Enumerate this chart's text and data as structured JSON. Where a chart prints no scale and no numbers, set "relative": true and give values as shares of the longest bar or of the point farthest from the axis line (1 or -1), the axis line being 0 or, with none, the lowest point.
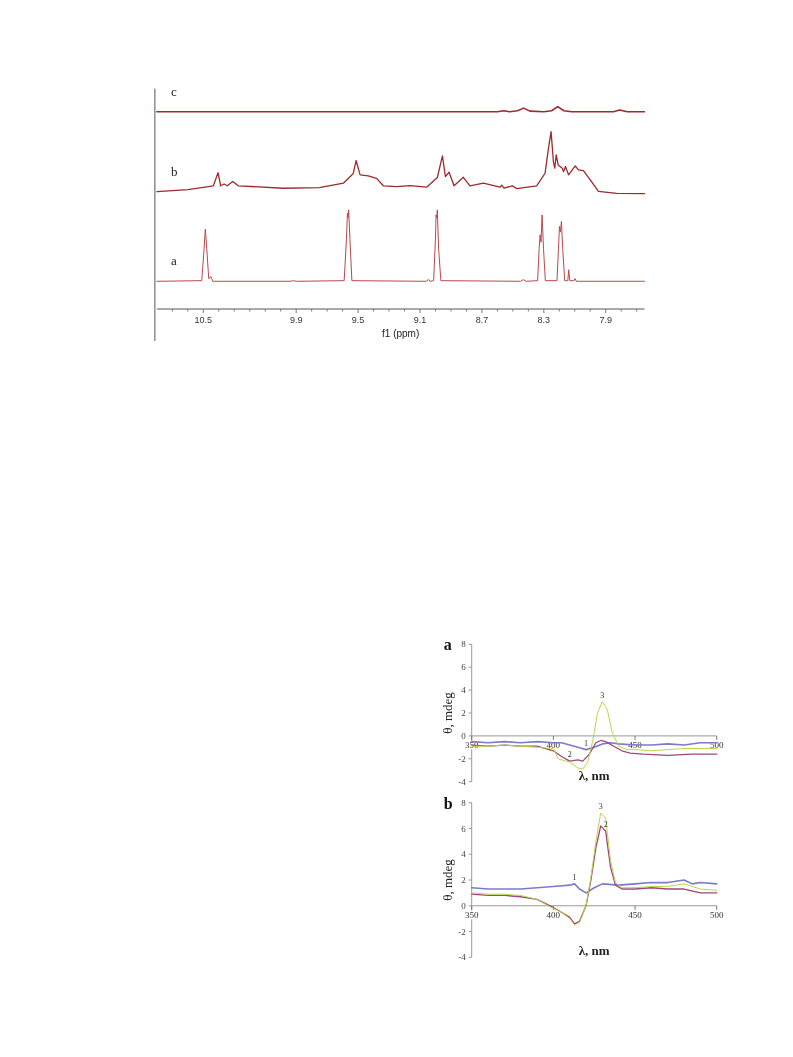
{
  "chart_data": [
    {
      "type": "line",
      "relative": true,
      "xlabel": "f1 (ppm)",
      "xlim": [
        10.8,
        7.65
      ],
      "xticks": [
        {
          "value": 10.7,
          "label": null
        },
        {
          "value": 10.6,
          "label": null
        },
        {
          "value": 10.5,
          "label": "10.5"
        },
        {
          "value": 10.4,
          "label": null
        },
        {
          "value": 10.3,
          "label": null
        },
        {
          "value": 10.2,
          "label": null
        },
        {
          "value": 10.1,
          "label": null
        },
        {
          "value": 10.0,
          "label": null
        },
        {
          "value": 9.9,
          "label": "9.9"
        },
        {
          "value": 9.8,
          "label": null
        },
        {
          "value": 9.7,
          "label": null
        },
        {
          "value": 9.6,
          "label": null
        },
        {
          "value": 9.5,
          "label": "9.5"
        },
        {
          "value": 9.4,
          "label": null
        },
        {
          "value": 9.3,
          "label": null
        },
        {
          "value": 9.2,
          "label": null
        },
        {
          "value": 9.1,
          "label": "9.1"
        },
        {
          "value": 9.0,
          "label": null
        },
        {
          "value": 8.9,
          "label": null
        },
        {
          "value": 8.8,
          "label": null
        },
        {
          "value": 8.7,
          "label": "8.7"
        },
        {
          "value": 8.6,
          "label": null
        },
        {
          "value": 8.5,
          "label": null
        },
        {
          "value": 8.4,
          "label": null
        },
        {
          "value": 8.3,
          "label": "8.3"
        },
        {
          "value": 8.2,
          "label": null
        },
        {
          "value": 8.1,
          "label": null
        },
        {
          "value": 8.0,
          "label": null
        },
        {
          "value": 7.9,
          "label": "7.9"
        },
        {
          "value": 7.8,
          "label": null
        },
        {
          "value": 7.7,
          "label": null
        }
      ],
      "series": [
        {
          "name": "c",
          "color": "#9e2a2b",
          "x": [
            10.8,
            10.2,
            9.6,
            9.0,
            8.6,
            8.56,
            8.52,
            8.47,
            8.43,
            8.39,
            8.3,
            8.25,
            8.21,
            8.17,
            8.12,
            8.0,
            7.85,
            7.81,
            7.76,
            7.65
          ],
          "values": [
            0.975,
            0.975,
            0.975,
            0.975,
            0.975,
            0.98,
            0.975,
            0.98,
            0.993,
            0.978,
            0.975,
            0.98,
            1.0,
            0.98,
            0.975,
            0.975,
            0.975,
            0.984,
            0.975,
            0.975
          ]
        },
        {
          "name": "b",
          "color": "#9e2a2b",
          "x": [
            10.8,
            10.6,
            10.435,
            10.405,
            10.388,
            10.366,
            10.345,
            10.31,
            10.274,
            9.983,
            9.75,
            9.595,
            9.531,
            9.513,
            9.487,
            9.434,
            9.38,
            9.337,
            9.25,
            9.164,
            9.057,
            8.988,
            8.955,
            8.936,
            8.912,
            8.88,
            8.82,
            8.777,
            8.69,
            8.583,
            8.572,
            8.557,
            8.503,
            8.475,
            8.346,
            8.292,
            8.27,
            8.253,
            8.238,
            8.229,
            8.22,
            8.207,
            8.181,
            8.173,
            8.16,
            8.14,
            8.097,
            8.076,
            8.044,
            8.0,
            7.947,
            7.829,
            7.65
          ],
          "values": [
            0.58,
            0.59,
            0.609,
            0.674,
            0.609,
            0.618,
            0.609,
            0.63,
            0.609,
            0.597,
            0.6,
            0.622,
            0.67,
            0.734,
            0.663,
            0.658,
            0.646,
            0.609,
            0.605,
            0.61,
            0.602,
            0.65,
            0.757,
            0.655,
            0.676,
            0.609,
            0.651,
            0.609,
            0.622,
            0.602,
            0.612,
            0.597,
            0.609,
            0.595,
            0.609,
            0.671,
            0.794,
            0.877,
            0.729,
            0.696,
            0.762,
            0.712,
            0.696,
            0.679,
            0.704,
            0.663,
            0.707,
            0.688,
            0.684,
            0.638,
            0.581,
            0.572,
            0.57
          ]
        },
        {
          "name": "a",
          "color": "#b8484b",
          "x": [
            10.8,
            10.51,
            10.495,
            10.487,
            10.478,
            10.465,
            10.45,
            10.44,
            9.94,
            9.918,
            9.9,
            9.59,
            9.575,
            9.569,
            9.565,
            9.561,
            9.553,
            9.54,
            9.06,
            9.046,
            9.03,
            9.012,
            9.0,
            8.996,
            8.992,
            8.988,
            8.98,
            8.965,
            8.45,
            8.432,
            8.415,
            8.34,
            8.33,
            8.324,
            8.318,
            8.311,
            8.302,
            8.29,
            8.215,
            8.205,
            8.199,
            8.193,
            8.186,
            8.178,
            8.165,
            8.145,
            8.139,
            8.132,
            8.105,
            8.098,
            8.09,
            7.65
          ],
          "values": [
            0.137,
            0.14,
            0.3,
            0.395,
            0.3,
            0.15,
            0.16,
            0.137,
            0.137,
            0.14,
            0.137,
            0.14,
            0.35,
            0.474,
            0.45,
            0.49,
            0.35,
            0.14,
            0.137,
            0.145,
            0.137,
            0.14,
            0.35,
            0.465,
            0.45,
            0.49,
            0.3,
            0.14,
            0.137,
            0.145,
            0.137,
            0.14,
            0.3,
            0.367,
            0.33,
            0.465,
            0.3,
            0.14,
            0.14,
            0.3,
            0.408,
            0.38,
            0.433,
            0.3,
            0.14,
            0.14,
            0.194,
            0.14,
            0.14,
            0.15,
            0.137,
            0.137
          ]
        }
      ]
    },
    {
      "type": "line",
      "title": "a",
      "xlabel": "λ, nm",
      "ylabel": "θ, mdeg",
      "xlim": [
        350,
        500
      ],
      "ylim": [
        -4,
        8
      ],
      "xticks": [
        350,
        400,
        450,
        500
      ],
      "yticks": [
        -4,
        -2,
        0,
        2,
        4,
        6,
        8
      ],
      "series": [
        {
          "color": "#7b7bc8",
          "x": [
            350,
            360,
            370,
            380,
            390,
            400,
            405,
            410,
            415,
            420,
            425,
            430,
            435,
            440,
            450,
            460,
            470,
            480,
            490,
            500
          ],
          "values": [
            -0.5,
            -0.6,
            -0.5,
            -0.6,
            -0.5,
            -0.6,
            -0.6,
            -0.8,
            -1.0,
            -1.2,
            -1.0,
            -0.7,
            -0.6,
            -0.7,
            -0.8,
            -0.8,
            -0.7,
            -0.8,
            -0.6,
            -0.6
          ]
        },
        {
          "color": "#a0467a",
          "x": [
            350,
            360,
            370,
            380,
            390,
            400,
            405,
            410,
            415,
            418,
            422,
            426,
            429,
            432,
            437,
            442,
            447,
            455,
            470,
            485,
            500
          ],
          "values": [
            -0.8,
            -0.9,
            -0.8,
            -0.9,
            -0.9,
            -1.3,
            -1.8,
            -2.2,
            -2.1,
            -2.2,
            -1.6,
            -0.6,
            -0.4,
            -0.5,
            -0.9,
            -1.3,
            -1.5,
            -1.6,
            -1.7,
            -1.6,
            -1.6
          ]
        },
        {
          "color": "#b5d84a",
          "x": [
            350,
            360,
            370,
            380,
            390,
            400,
            403,
            410,
            415,
            418,
            421,
            424,
            425,
            427,
            430,
            433,
            436,
            440,
            445,
            450,
            460,
            470,
            480,
            490,
            500
          ],
          "values": [
            -0.9,
            -0.9,
            -0.8,
            -0.9,
            -1.0,
            -1.1,
            -2.0,
            -2.3,
            -2.8,
            -2.9,
            -2.3,
            -0.5,
            0.3,
            2.0,
            3.0,
            2.3,
            0.3,
            -0.9,
            -1.2,
            -1.2,
            -1.3,
            -1.2,
            -1.1,
            -1.1,
            -1.1
          ]
        }
      ],
      "annotations": [
        {
          "text": "1",
          "x": 420,
          "y": -1.2
        },
        {
          "text": "2",
          "x": 410,
          "y": -2.2
        },
        {
          "text": "3",
          "x": 430,
          "y": 3.0
        }
      ]
    },
    {
      "type": "line",
      "title": "b",
      "xlabel": "λ, nm",
      "ylabel": "θ, mdeg",
      "xlim": [
        350,
        500
      ],
      "ylim": [
        -4,
        8
      ],
      "xticks": [
        350,
        400,
        450,
        500
      ],
      "yticks": [
        -4,
        -2,
        0,
        2,
        4,
        6,
        8
      ],
      "series": [
        {
          "color": "#7b7bc8",
          "x": [
            350,
            360,
            370,
            380,
            390,
            400,
            410,
            413,
            416,
            420,
            425,
            430,
            440,
            450,
            460,
            470,
            480,
            485,
            490,
            500
          ],
          "values": [
            1.4,
            1.3,
            1.3,
            1.3,
            1.4,
            1.5,
            1.6,
            1.7,
            1.3,
            1.0,
            1.4,
            1.7,
            1.6,
            1.7,
            1.8,
            1.8,
            2.0,
            1.7,
            1.8,
            1.7
          ]
        },
        {
          "color": "#a0467a",
          "x": [
            350,
            360,
            370,
            380,
            390,
            398,
            405,
            410,
            413,
            416,
            420,
            423,
            426,
            429,
            432,
            435,
            438,
            442,
            450,
            460,
            470,
            480,
            490,
            500
          ],
          "values": [
            0.9,
            0.8,
            0.8,
            0.7,
            0.5,
            0.0,
            -0.5,
            -0.9,
            -1.4,
            -1.2,
            0.0,
            2.0,
            4.5,
            6.2,
            5.8,
            3.0,
            1.6,
            1.3,
            1.3,
            1.4,
            1.3,
            1.3,
            1.0,
            1.0
          ]
        },
        {
          "color": "#b5d84a",
          "x": [
            350,
            360,
            370,
            380,
            390,
            398,
            405,
            410,
            413,
            416,
            420,
            423,
            426,
            429,
            432,
            435,
            438,
            442,
            450,
            460,
            470,
            480,
            490,
            500
          ],
          "values": [
            1.0,
            0.9,
            0.9,
            0.8,
            0.5,
            -0.1,
            -0.5,
            -1.0,
            -1.5,
            -1.3,
            0.0,
            2.2,
            5.0,
            7.2,
            6.8,
            3.5,
            1.8,
            1.4,
            1.4,
            1.5,
            1.5,
            1.7,
            1.3,
            1.2
          ]
        }
      ],
      "annotations": [
        {
          "text": "1",
          "x": 413,
          "y": 1.7
        },
        {
          "text": "3",
          "x": 429,
          "y": 7.2
        },
        {
          "text": "2",
          "x": 432,
          "y": 5.8
        }
      ]
    }
  ]
}
